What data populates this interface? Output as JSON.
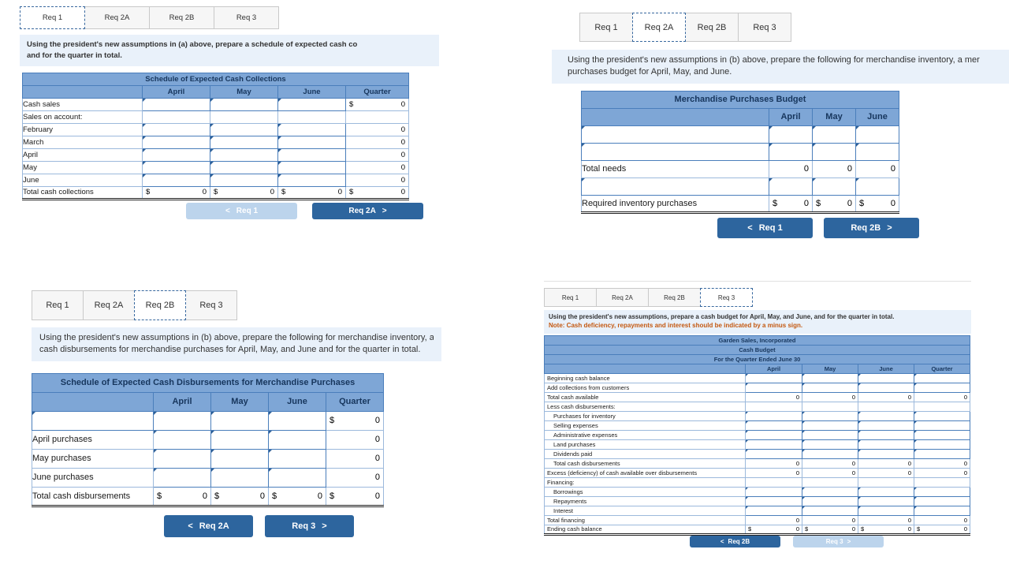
{
  "icons": {
    "chevron_left": "<",
    "chevron_right": ">"
  },
  "colors": {
    "accent_button_blue": "#2d659e",
    "disabled_button_blue": "#bcd4ec",
    "table_header_blue": "#7ea6d6",
    "table_border_blue": "#4a7ebb",
    "instruction_bg": "#e9f1fa",
    "note_orange": "#c45911"
  },
  "panels": [
    {
      "id": "req1",
      "tabs": [
        {
          "label": "Req 1",
          "active": true
        },
        {
          "label": "Req 2A",
          "active": false
        },
        {
          "label": "Req 2B",
          "active": false
        },
        {
          "label": "Req 3",
          "active": false
        }
      ],
      "instruction_lines": [
        {
          "text": "Using the president's new assumptions in (a) above, prepare a schedule of expected cash co",
          "note": false
        },
        {
          "text": "and for the quarter in total.",
          "note": false
        }
      ],
      "table": {
        "title_lines": [
          "Schedule of Expected Cash Collections"
        ],
        "columns": [
          "April",
          "May",
          "June",
          "Quarter"
        ],
        "rows": [
          {
            "label": "Cash sales",
            "cells": [
              "in",
              "in",
              "in",
              "$0"
            ]
          },
          {
            "label": "Sales on account:",
            "cells": [
              "blank",
              "blank",
              "blank",
              "blank"
            ]
          },
          {
            "label": "February",
            "ind": 1,
            "cells": [
              "in",
              "in",
              "in",
              "0"
            ]
          },
          {
            "label": "March",
            "ind": 1,
            "cells": [
              "in",
              "in",
              "in",
              "0"
            ]
          },
          {
            "label": "April",
            "ind": 1,
            "cells": [
              "in",
              "in",
              "in",
              "0"
            ]
          },
          {
            "label": "May",
            "ind": 1,
            "cells": [
              "in",
              "in",
              "in",
              "0"
            ]
          },
          {
            "label": "June",
            "ind": 1,
            "cells": [
              "in",
              "in",
              "in",
              "0"
            ]
          },
          {
            "label": "Total cash collections",
            "total": true,
            "cells": [
              "$0",
              "$0",
              "$0",
              "$0"
            ]
          }
        ]
      },
      "buttons": [
        {
          "label": "Req 1",
          "dir": "prev",
          "disabled": true
        },
        {
          "label": "Req 2A",
          "dir": "next",
          "disabled": false
        }
      ]
    },
    {
      "id": "req2a",
      "tabs": [
        {
          "label": "Req 1",
          "active": false
        },
        {
          "label": "Req 2A",
          "active": true
        },
        {
          "label": "Req 2B",
          "active": false
        },
        {
          "label": "Req 3",
          "active": false
        }
      ],
      "instruction_lines": [
        {
          "text": "Using the president's new assumptions in (b) above, prepare the following for merchandise inventory, a mer",
          "note": false
        },
        {
          "text": "purchases budget for April, May, and June.",
          "note": false
        }
      ],
      "table": {
        "title_lines": [
          "Merchandise Purchases Budget"
        ],
        "columns": [
          "April",
          "May",
          "June"
        ],
        "rows": [
          {
            "label": "",
            "labelType": "in",
            "cells": [
              "in",
              "in",
              "in"
            ]
          },
          {
            "label": "",
            "labelType": "in",
            "cells": [
              "in",
              "in",
              "in"
            ]
          },
          {
            "label": "Total needs",
            "cells": [
              "0",
              "0",
              "0"
            ]
          },
          {
            "label": "",
            "labelType": "in",
            "cells": [
              "in",
              "in",
              "in"
            ]
          },
          {
            "label": "Required inventory purchases",
            "total": true,
            "cells": [
              "$0",
              "$0",
              "$0"
            ]
          }
        ]
      },
      "buttons": [
        {
          "label": "Req 1",
          "dir": "prev",
          "disabled": false
        },
        {
          "label": "Req 2B",
          "dir": "next",
          "disabled": false
        }
      ]
    },
    {
      "id": "req2b",
      "tabs": [
        {
          "label": "Req 1",
          "active": false
        },
        {
          "label": "Req 2A",
          "active": false
        },
        {
          "label": "Req 2B",
          "active": true
        },
        {
          "label": "Req 3",
          "active": false
        }
      ],
      "instruction_lines": [
        {
          "text": "Using the president's new assumptions in (b) above, prepare the following for merchandise inventory, a schedul",
          "note": false
        },
        {
          "text": "cash disbursements for merchandise purchases for April, May, and June and for the quarter in total.",
          "note": false
        }
      ],
      "table": {
        "title_lines": [
          "Schedule of Expected Cash Disbursements for Merchandise Purchases"
        ],
        "columns": [
          "April",
          "May",
          "June",
          "Quarter"
        ],
        "rows": [
          {
            "label": "",
            "labelType": "in",
            "cells": [
              "in",
              "in",
              "in",
              "$0"
            ]
          },
          {
            "label": "April purchases",
            "cells": [
              "in",
              "in",
              "in",
              "0"
            ]
          },
          {
            "label": "May purchases",
            "cells": [
              "in",
              "in",
              "in",
              "0"
            ]
          },
          {
            "label": "June purchases",
            "cells": [
              "in",
              "in",
              "in",
              "0"
            ]
          },
          {
            "label": "Total cash disbursements",
            "total": true,
            "cells": [
              "$0",
              "$0",
              "$0",
              "$0"
            ]
          }
        ]
      },
      "buttons": [
        {
          "label": "Req 2A",
          "dir": "prev",
          "disabled": false
        },
        {
          "label": "Req 3",
          "dir": "next",
          "disabled": false
        }
      ]
    },
    {
      "id": "req3",
      "tabs": [
        {
          "label": "Req 1",
          "active": false
        },
        {
          "label": "Req 2A",
          "active": false
        },
        {
          "label": "Req 2B",
          "active": false
        },
        {
          "label": "Req 3",
          "active": true
        }
      ],
      "instruction_lines": [
        {
          "text": "Using the president's new assumptions, prepare a cash budget for April, May, and June, and for the quarter in total.",
          "note": false
        },
        {
          "text": "Note: Cash deficiency, repayments and interest should be indicated by a minus sign.",
          "note": true
        }
      ],
      "table": {
        "title_lines": [
          "Garden Sales, Incorporated",
          "Cash Budget",
          "For the Quarter Ended June 30"
        ],
        "columns": [
          "April",
          "May",
          "June",
          "Quarter"
        ],
        "rows": [
          {
            "label": "Beginning cash balance",
            "cells": [
              "in",
              "in",
              "in",
              "in"
            ]
          },
          {
            "label": "Add collections from customers",
            "cells": [
              "in",
              "in",
              "in",
              "in"
            ]
          },
          {
            "label": "Total cash available",
            "cells": [
              "0",
              "0",
              "0",
              "0"
            ]
          },
          {
            "label": "Less cash disbursements:",
            "cells": [
              "blank",
              "blank",
              "blank",
              "blank"
            ]
          },
          {
            "label": "Purchases for inventory",
            "ind": 1,
            "cells": [
              "in",
              "in",
              "in",
              "in"
            ]
          },
          {
            "label": "Selling expenses",
            "ind": 1,
            "cells": [
              "in",
              "in",
              "in",
              "in"
            ]
          },
          {
            "label": "Administrative expenses",
            "ind": 1,
            "cells": [
              "in",
              "in",
              "in",
              "in"
            ]
          },
          {
            "label": "Land purchases",
            "ind": 1,
            "cells": [
              "in",
              "in",
              "in",
              "in"
            ]
          },
          {
            "label": "Dividends paid",
            "ind": 1,
            "cells": [
              "in",
              "in",
              "in",
              "in"
            ]
          },
          {
            "label": "Total cash disbursements",
            "ind": 1,
            "cells": [
              "0",
              "0",
              "0",
              "0"
            ]
          },
          {
            "label": "Excess (deficiency) of cash available over disbursements",
            "cells": [
              "0",
              "0",
              "0",
              "0"
            ]
          },
          {
            "label": "Financing:",
            "cells": [
              "blank",
              "blank",
              "blank",
              "blank"
            ]
          },
          {
            "label": "Borrowings",
            "ind": 1,
            "cells": [
              "in",
              "in",
              "in",
              "in"
            ]
          },
          {
            "label": "Repayments",
            "ind": 1,
            "cells": [
              "in",
              "in",
              "in",
              "in"
            ]
          },
          {
            "label": "Interest",
            "ind": 1,
            "cells": [
              "in",
              "in",
              "in",
              "in"
            ]
          },
          {
            "label": "Total financing",
            "cells": [
              "0",
              "0",
              "0",
              "0"
            ]
          },
          {
            "label": "Ending cash balance",
            "total": true,
            "cells": [
              "$0",
              "$0",
              "$0",
              "$0"
            ]
          }
        ]
      },
      "buttons": [
        {
          "label": "Req 2B",
          "dir": "prev",
          "disabled": false
        },
        {
          "label": "Req 3",
          "dir": "next",
          "disabled": true
        }
      ]
    }
  ]
}
